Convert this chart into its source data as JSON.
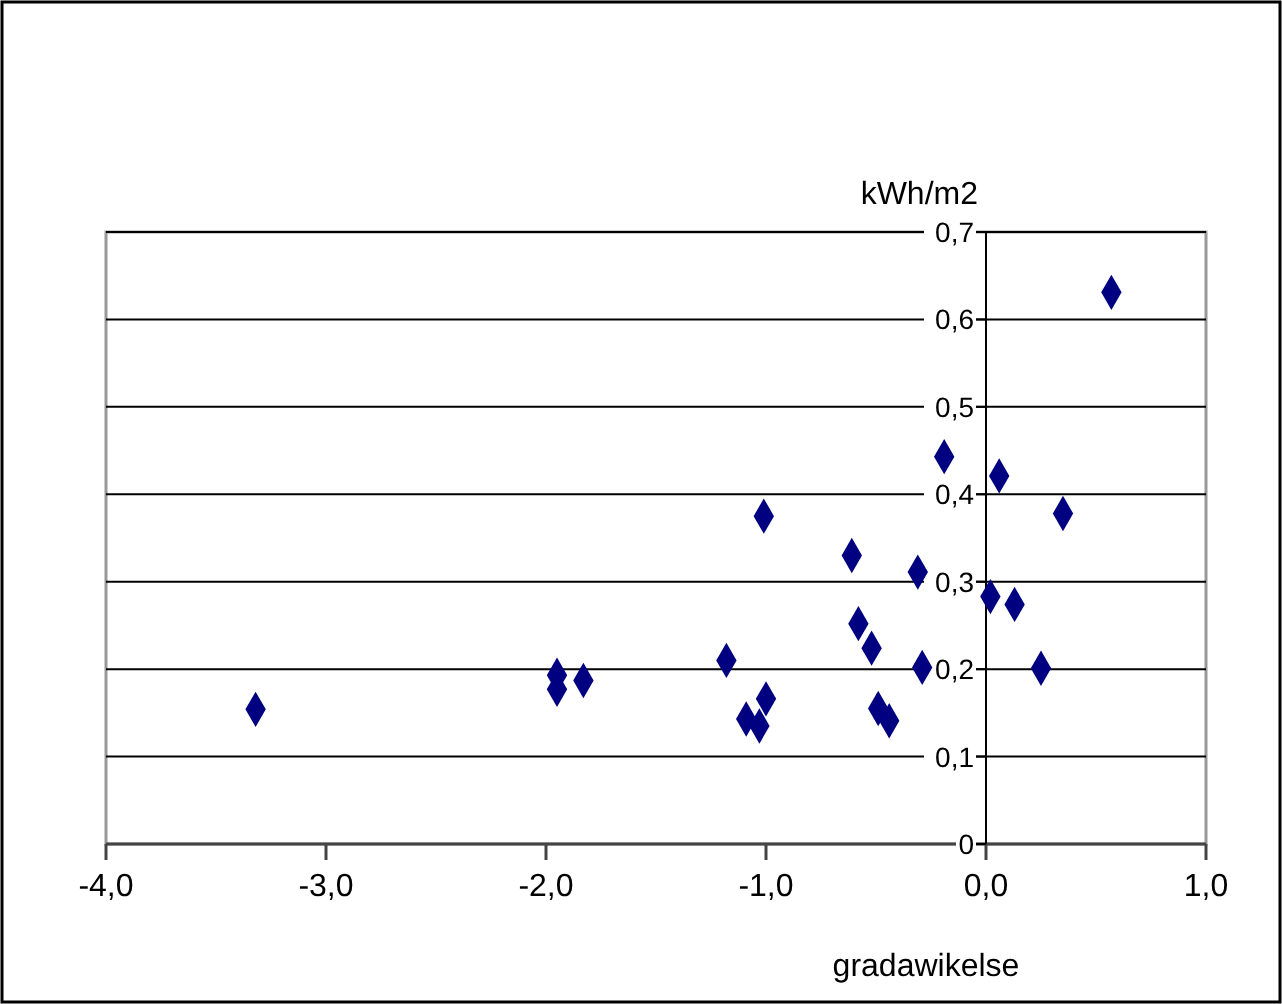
{
  "chart_data": {
    "type": "scatter",
    "xlabel": "gradawikelse",
    "ylabel": "kWh/m2",
    "marker": "diamond",
    "grid": "y",
    "xlim": [
      -4,
      1
    ],
    "ylim": [
      0,
      0.7
    ],
    "xticks": [
      {
        "value": -4,
        "label": "-4,0"
      },
      {
        "value": -3,
        "label": "-3,0"
      },
      {
        "value": -2,
        "label": "-2,0"
      },
      {
        "value": -1,
        "label": "-1,0"
      },
      {
        "value": 0,
        "label": "0,0"
      },
      {
        "value": 1,
        "label": "1,0"
      }
    ],
    "yticks": [
      0,
      {
        "value": 0.1,
        "label": "0,1"
      },
      {
        "value": 0.2,
        "label": "0,2"
      },
      {
        "value": 0.3,
        "label": "0,3"
      },
      {
        "value": 0.4,
        "label": "0,4"
      },
      {
        "value": 0.5,
        "label": "0,5"
      },
      {
        "value": 0.6,
        "label": "0,6"
      },
      {
        "value": 0.7,
        "label": "0,7"
      }
    ],
    "series": [
      {
        "color": "#000080",
        "x": [
          -3.32,
          -1.95,
          -1.95,
          -1.83,
          -1.18,
          -1.01,
          -1.09,
          -1.03,
          -1.0,
          -0.61,
          -0.58,
          -0.52,
          -0.49,
          -0.44,
          -0.31,
          -0.29,
          -0.19,
          0.02,
          0.06,
          0.13,
          0.25,
          0.35,
          0.57
        ],
        "values": [
          0.154,
          0.193,
          0.177,
          0.187,
          0.21,
          0.375,
          0.143,
          0.135,
          0.166,
          0.33,
          0.252,
          0.224,
          0.155,
          0.141,
          0.311,
          0.202,
          0.443,
          0.283,
          0.421,
          0.274,
          0.201,
          0.378,
          0.631
        ]
      }
    ]
  }
}
